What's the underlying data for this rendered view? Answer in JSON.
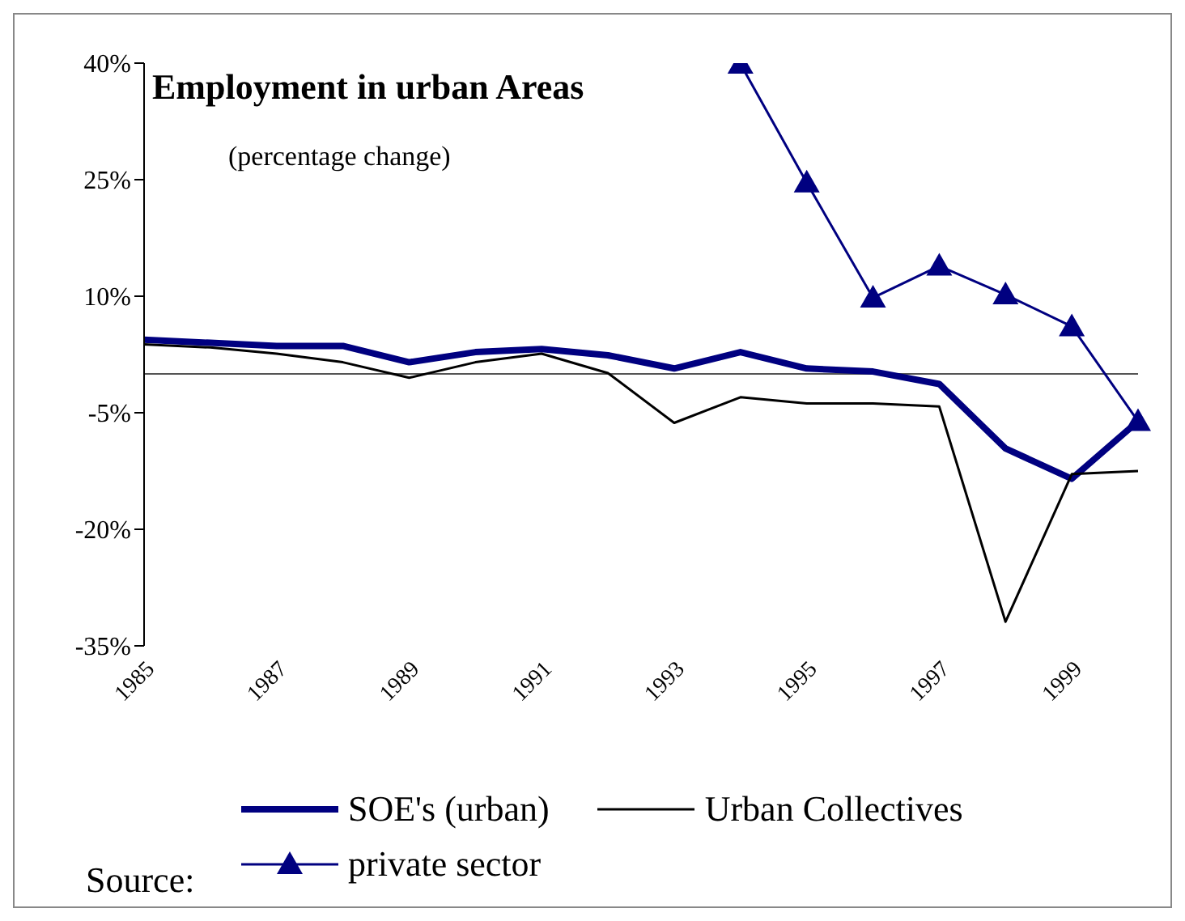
{
  "chart_data": {
    "type": "line",
    "title": "Employment in urban Areas",
    "subtitle": "(percentage change)",
    "categories": [
      "1985",
      null,
      "1987",
      null,
      "1989",
      null,
      "1991",
      null,
      "1993",
      null,
      "1995",
      null,
      "1997",
      null,
      "1999",
      null
    ],
    "series": [
      {
        "name": "SOE's (urban)",
        "color": "#000080",
        "marker": "none",
        "values": [
          4.4,
          4,
          3.6,
          3.6,
          1.5,
          2.8,
          3.2,
          2.4,
          0.7,
          2.8,
          0.7,
          0.3,
          -1.3,
          -9.6,
          -13.5,
          -6.1
        ]
      },
      {
        "name": "Urban Collectives",
        "color": "#000000",
        "marker": "none",
        "values": [
          3.8,
          3.4,
          2.6,
          1.5,
          -0.5,
          1.5,
          2.6,
          0.1,
          -6.3,
          -3,
          -3.8,
          -3.8,
          -4.2,
          -31.9,
          -12.9,
          -12.5
        ]
      },
      {
        "name": "private sector",
        "color": "#000080",
        "marker": "triangle",
        "values": [
          null,
          null,
          null,
          null,
          null,
          null,
          null,
          null,
          null,
          39.9,
          24.6,
          9.8,
          13.9,
          10.2,
          6.1,
          -6.1
        ]
      }
    ],
    "ylim": [
      -35,
      40
    ],
    "yticks": [
      {
        "value": -35,
        "label": "-35%"
      },
      {
        "value": -20,
        "label": "-20%"
      },
      {
        "value": -5,
        "label": "-5%"
      },
      {
        "value": 10,
        "label": "10%"
      },
      {
        "value": 25,
        "label": "25%"
      },
      {
        "value": 40,
        "label": "40%"
      }
    ],
    "legend": "bottom",
    "annotations": [
      "Source:"
    ]
  }
}
